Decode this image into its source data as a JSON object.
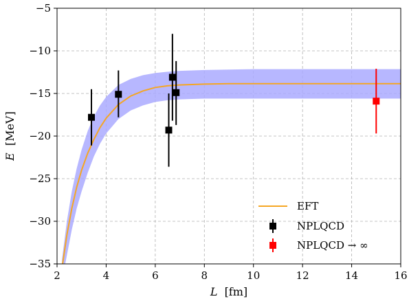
{
  "chart_data": {
    "type": "scatter",
    "xlabel": {
      "var": "L",
      "unit": "[fm]"
    },
    "ylabel": {
      "var": "E",
      "unit": "[MeV]"
    },
    "xlim": [
      2,
      16
    ],
    "ylim": [
      -35,
      -5
    ],
    "xticks": [
      2,
      4,
      6,
      8,
      10,
      12,
      14,
      16
    ],
    "yticks": [
      -35,
      -30,
      -25,
      -20,
      -15,
      -10,
      -5
    ],
    "ytick_labels": [
      "−35",
      "−30",
      "−25",
      "−20",
      "−15",
      "−10",
      "−5"
    ],
    "grid": true,
    "legend_position": "lower-right",
    "series": [
      {
        "name": "EFT",
        "kind": "line",
        "color": "#f5a623",
        "band_color": "#aaaaff",
        "x": [
          2.2,
          2.4,
          2.6,
          2.8,
          3.0,
          3.25,
          3.5,
          3.75,
          4.0,
          4.5,
          5.0,
          5.5,
          6.0,
          6.5,
          7.0,
          7.5,
          8.0,
          9.0,
          10.0,
          12.0,
          14.0,
          16.0
        ],
        "y": [
          -35.5,
          -31.6,
          -28.5,
          -26.0,
          -24.0,
          -22.0,
          -20.4,
          -19.0,
          -17.9,
          -16.3,
          -15.3,
          -14.7,
          -14.3,
          -14.1,
          -14.0,
          -13.95,
          -13.9,
          -13.85,
          -13.85,
          -13.85,
          -13.85,
          -13.85
        ],
        "band_lower": [
          -37,
          -34.0,
          -31.0,
          -28.5,
          -26.5,
          -24.3,
          -22.4,
          -20.9,
          -19.7,
          -18.0,
          -17.0,
          -16.4,
          -16.0,
          -15.8,
          -15.7,
          -15.65,
          -15.6,
          -15.6,
          -15.6,
          -15.6,
          -15.6,
          -15.6
        ],
        "band_upper": [
          -34.5,
          -30.0,
          -26.5,
          -23.8,
          -21.6,
          -19.4,
          -17.7,
          -16.4,
          -15.4,
          -14.0,
          -13.3,
          -12.85,
          -12.6,
          -12.45,
          -12.35,
          -12.3,
          -12.25,
          -12.2,
          -12.15,
          -12.15,
          -12.15,
          -12.15
        ]
      },
      {
        "name": "NPLQCD",
        "kind": "errorbar",
        "color": "#000000",
        "points": [
          {
            "x": 3.4,
            "y": -17.8,
            "err_low": 3.3,
            "err_high": 3.3
          },
          {
            "x": 4.5,
            "y": -15.1,
            "err_low": 2.7,
            "err_high": 2.8
          },
          {
            "x": 6.55,
            "y": -19.3,
            "err_low": 4.3,
            "err_high": 4.3
          },
          {
            "x": 6.7,
            "y": -13.1,
            "err_low": 5.1,
            "err_high": 5.1
          },
          {
            "x": 6.85,
            "y": -14.9,
            "err_low": 3.8,
            "err_high": 3.7
          }
        ]
      },
      {
        "name": "NPLQCD → ∞",
        "kind": "errorbar",
        "color": "#ff0000",
        "points": [
          {
            "x": 15.0,
            "y": -15.9,
            "err_low": 3.8,
            "err_high": 3.8
          }
        ]
      }
    ]
  }
}
